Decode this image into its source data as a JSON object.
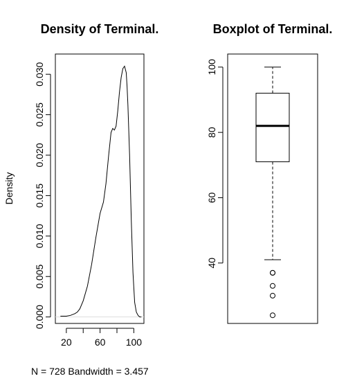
{
  "chart_data": [
    {
      "type": "line",
      "title": "Density of Terminal.",
      "ylabel": "Density",
      "xlabel": "N = 728   Bandwidth = 3.457",
      "xlim": [
        7,
        112
      ],
      "ylim": [
        -0.0008,
        0.0325
      ],
      "x_ticks": [
        20,
        60,
        100
      ],
      "y_ticks": [
        0.0,
        0.005,
        0.01,
        0.015,
        0.02,
        0.025,
        0.03
      ],
      "y_tick_labels": [
        "0.000",
        "0.005",
        "0.010",
        "0.015",
        "0.020",
        "0.025",
        "0.030"
      ],
      "x": [
        13,
        20,
        25,
        30,
        33,
        36,
        40,
        45,
        50,
        55,
        60,
        64,
        67,
        70,
        73,
        75,
        77,
        79,
        81,
        83,
        85,
        87,
        89,
        91,
        92,
        93,
        95,
        97,
        99,
        101,
        103,
        105,
        107,
        109
      ],
      "y": [
        0.0001,
        0.0001,
        0.0002,
        0.0004,
        0.0006,
        0.001,
        0.002,
        0.0038,
        0.0065,
        0.0098,
        0.0128,
        0.0142,
        0.0165,
        0.0198,
        0.0228,
        0.0233,
        0.0231,
        0.0236,
        0.0255,
        0.0278,
        0.0296,
        0.0307,
        0.031,
        0.0302,
        0.0285,
        0.0262,
        0.02,
        0.012,
        0.0055,
        0.0018,
        0.0006,
        0.0002,
        0.0,
        0.0
      ]
    },
    {
      "type": "box",
      "title": "Boxplot of Terminal.",
      "ylim": [
        21.5,
        104
      ],
      "y_ticks": [
        40,
        60,
        80,
        100
      ],
      "y_tick_labels": [
        "40",
        "60",
        "80",
        "100"
      ],
      "whisker_low": 41,
      "q1": 71,
      "median": 82,
      "q3": 92,
      "whisker_high": 100,
      "outliers": [
        37,
        37,
        33,
        30,
        24
      ]
    }
  ]
}
